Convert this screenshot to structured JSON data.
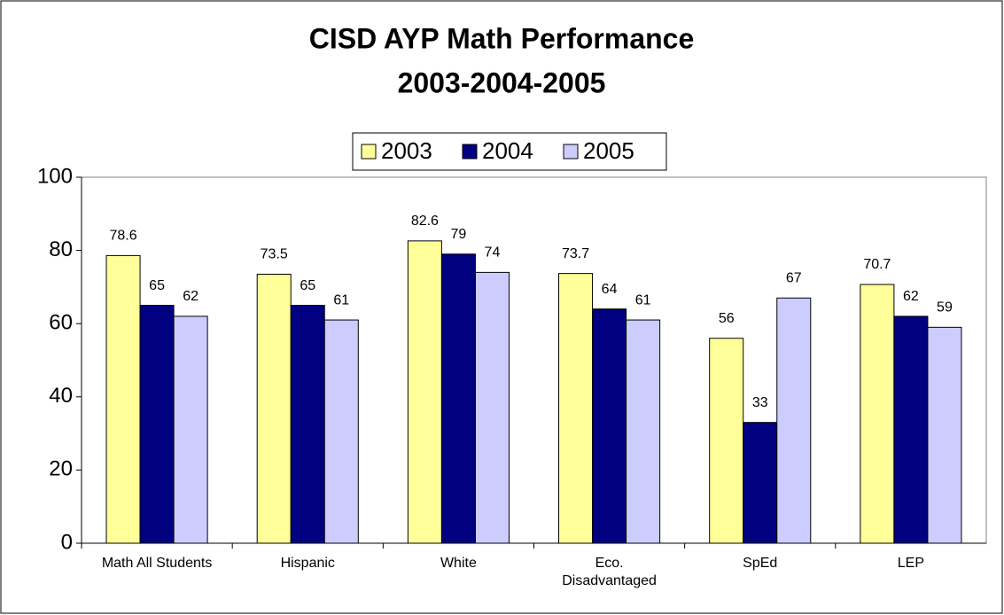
{
  "chart_data": {
    "type": "bar",
    "title": "CISD AYP Math Performance",
    "subtitle": "2003-2004-2005",
    "categories": [
      "Math All Students",
      "Hispanic",
      "White",
      "Eco. Disadvantaged",
      "SpEd",
      "LEP"
    ],
    "series": [
      {
        "name": "2003",
        "color": "#ffff99",
        "values": [
          78.6,
          73.5,
          82.6,
          73.7,
          56,
          70.7
        ]
      },
      {
        "name": "2004",
        "color": "#000080",
        "values": [
          65,
          65,
          79,
          64,
          33,
          62
        ]
      },
      {
        "name": "2005",
        "color": "#ccccff",
        "values": [
          62,
          61,
          74,
          61,
          67,
          59
        ]
      }
    ],
    "ylim": [
      0,
      100
    ],
    "yticks": [
      0,
      20,
      40,
      60,
      80,
      100
    ],
    "grid": false,
    "legend": "top"
  }
}
